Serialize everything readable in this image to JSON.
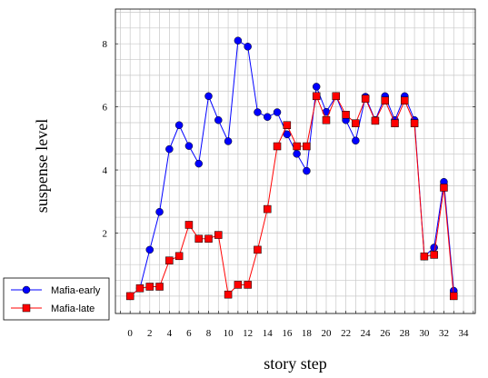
{
  "chart_data": {
    "type": "line",
    "xlabel": "story step",
    "ylabel": "suspense level",
    "xlim": [
      -1.5,
      35.2
    ],
    "ylim": [
      -0.55,
      9.1
    ],
    "xticks": [
      0,
      2,
      4,
      6,
      8,
      10,
      12,
      14,
      16,
      18,
      20,
      22,
      24,
      26,
      28,
      30,
      32,
      34
    ],
    "yticks": [
      2,
      4,
      6,
      8
    ],
    "grid": true,
    "legend_position": "bottom-left",
    "series": [
      {
        "name": "Mafia-early",
        "color": "#0000ff",
        "marker": "circle",
        "x": [
          0,
          1,
          2,
          3,
          4,
          5,
          6,
          7,
          8,
          9,
          10,
          11,
          12,
          13,
          14,
          15,
          16,
          17,
          18,
          19,
          20,
          21,
          22,
          23,
          24,
          25,
          26,
          27,
          28,
          29,
          30,
          31,
          32,
          33
        ],
        "values": [
          0.0,
          0.25,
          1.47,
          2.67,
          4.66,
          5.42,
          4.76,
          4.2,
          6.34,
          5.58,
          4.91,
          8.1,
          7.91,
          5.83,
          5.68,
          5.83,
          5.13,
          4.51,
          3.97,
          6.64,
          5.84,
          6.34,
          5.58,
          4.93,
          6.32,
          5.58,
          6.34,
          5.58,
          6.34,
          5.58,
          1.26,
          1.54,
          3.62,
          0.17
        ]
      },
      {
        "name": "Mafia-late",
        "color": "#ff0000",
        "marker": "square",
        "x": [
          0,
          1,
          2,
          3,
          4,
          5,
          6,
          7,
          8,
          9,
          10,
          11,
          12,
          13,
          14,
          15,
          16,
          17,
          18,
          19,
          20,
          21,
          22,
          23,
          24,
          25,
          26,
          27,
          28,
          29,
          30,
          31,
          32,
          33
        ],
        "values": [
          0.0,
          0.25,
          0.3,
          0.3,
          1.13,
          1.27,
          2.26,
          1.82,
          1.82,
          1.94,
          0.05,
          0.36,
          0.36,
          1.47,
          2.76,
          4.75,
          5.42,
          4.75,
          4.75,
          6.34,
          5.58,
          6.34,
          5.75,
          5.48,
          6.26,
          5.56,
          6.2,
          5.48,
          6.2,
          5.48,
          1.26,
          1.31,
          3.44,
          0.0
        ]
      }
    ]
  }
}
